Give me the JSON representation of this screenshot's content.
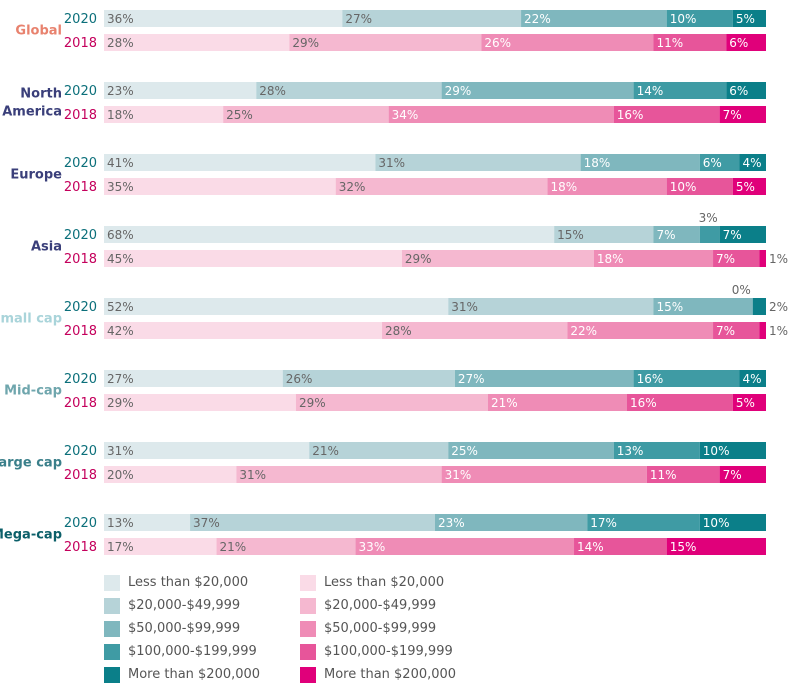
{
  "chart_data": {
    "type": "bar",
    "orientation": "horizontal",
    "stacked": true,
    "xlim": [
      0,
      100
    ],
    "grid": false,
    "legend_position": "bottom",
    "segments": [
      "Less than $20,000",
      "$20,000-$49,999",
      "$50,000-$99,999",
      "$100,000-$199,999",
      "More than $200,000"
    ],
    "colors_2020": [
      "#dde9ec",
      "#b6d3d8",
      "#7fb7be",
      "#3f9ba4",
      "#0b7f89"
    ],
    "colors_2018": [
      "#fadbe7",
      "#f5b8d0",
      "#ef8cb6",
      "#e7559a",
      "#e0007a"
    ],
    "group_label_colors": [
      "#e8826e",
      "#3a3f7a",
      "#3a3f7a",
      "#3a3f7a",
      "#a9d4da",
      "#6fa6ad",
      "#3a7f8a",
      "#0b5f69"
    ],
    "year_label_colors": {
      "2020": "#0b6f7a",
      "2018": "#c4005c"
    },
    "groups": [
      {
        "label": [
          "Global"
        ],
        "rows": [
          {
            "year": "2020",
            "values": [
              36,
              27,
              22,
              10,
              5
            ]
          },
          {
            "year": "2018",
            "values": [
              28,
              29,
              26,
              11,
              6
            ]
          }
        ]
      },
      {
        "label": [
          "North",
          "America"
        ],
        "rows": [
          {
            "year": "2020",
            "values": [
              23,
              28,
              29,
              14,
              6
            ]
          },
          {
            "year": "2018",
            "values": [
              18,
              25,
              34,
              16,
              7
            ]
          }
        ]
      },
      {
        "label": [
          "Europe"
        ],
        "rows": [
          {
            "year": "2020",
            "values": [
              41,
              31,
              18,
              6,
              4
            ]
          },
          {
            "year": "2018",
            "values": [
              35,
              32,
              18,
              10,
              5
            ]
          }
        ]
      },
      {
        "label": [
          "Asia"
        ],
        "rows": [
          {
            "year": "2020",
            "values": [
              68,
              15,
              7,
              3,
              7
            ]
          },
          {
            "year": "2018",
            "values": [
              45,
              29,
              18,
              7,
              1
            ]
          }
        ]
      },
      {
        "label": [
          "Small cap"
        ],
        "rows": [
          {
            "year": "2020",
            "values": [
              52,
              31,
              15,
              0,
              2
            ]
          },
          {
            "year": "2018",
            "values": [
              42,
              28,
              22,
              7,
              1
            ]
          }
        ]
      },
      {
        "label": [
          "Mid-cap"
        ],
        "rows": [
          {
            "year": "2020",
            "values": [
              27,
              26,
              27,
              16,
              4
            ]
          },
          {
            "year": "2018",
            "values": [
              29,
              29,
              21,
              16,
              5
            ]
          }
        ]
      },
      {
        "label": [
          "Large cap"
        ],
        "rows": [
          {
            "year": "2020",
            "values": [
              31,
              21,
              25,
              13,
              10
            ]
          },
          {
            "year": "2018",
            "values": [
              20,
              31,
              31,
              11,
              7
            ]
          }
        ]
      },
      {
        "label": [
          "Mega-cap"
        ],
        "rows": [
          {
            "year": "2020",
            "values": [
              13,
              37,
              23,
              17,
              10
            ]
          },
          {
            "year": "2018",
            "values": [
              17,
              21,
              33,
              14,
              15
            ]
          }
        ]
      }
    ]
  },
  "legend": {
    "col_2020": [
      "Less than $20,000",
      "$20,000-$49,999",
      "$50,000-$99,999",
      "$100,000-$199,999",
      "More than $200,000"
    ],
    "col_2018": [
      "Less than $20,000",
      "$20,000-$49,999",
      "$50,000-$99,999",
      "$100,000-$199,999",
      "More than $200,000"
    ]
  }
}
